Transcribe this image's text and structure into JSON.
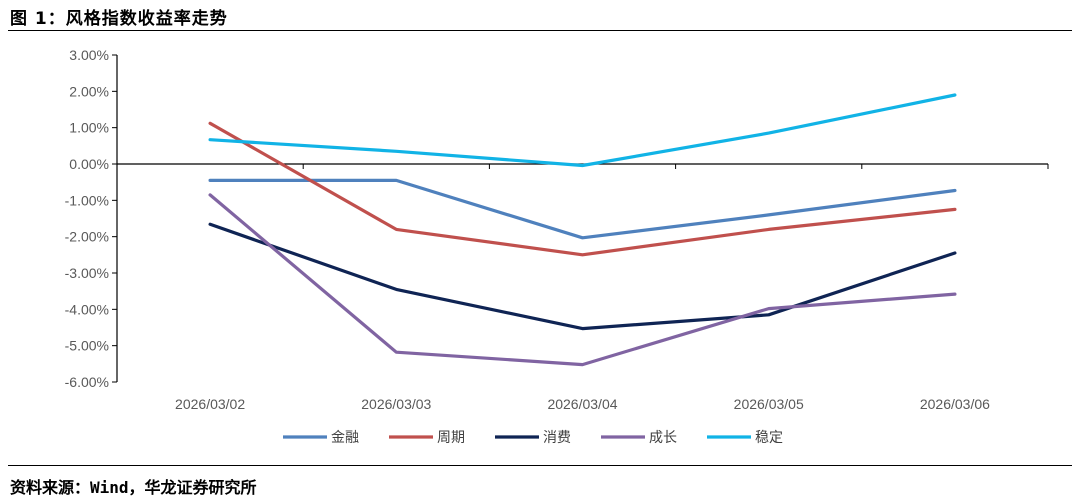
{
  "figure": {
    "title": "图 1：风格指数收益率走势",
    "source": "资料来源：Wind，华龙证券研究所"
  },
  "chart_data": {
    "type": "line",
    "title": "风格指数收益率走势",
    "xlabel": "",
    "ylabel": "",
    "ylim": [
      -6,
      3
    ],
    "ytick_step": 1,
    "yticks": [
      "3.00%",
      "2.00%",
      "1.00%",
      "0.00%",
      "-1.00%",
      "-2.00%",
      "-3.00%",
      "-4.00%",
      "-5.00%",
      "-6.00%"
    ],
    "categories": [
      "2026/03/02",
      "2026/03/03",
      "2026/03/04",
      "2026/03/05",
      "2026/03/06"
    ],
    "legend_position": "bottom",
    "grid": false,
    "series": [
      {
        "name": "金融",
        "color": "#4F81BD",
        "values": [
          -0.45,
          -0.45,
          -2.03,
          -1.4,
          -0.73
        ]
      },
      {
        "name": "周期",
        "color": "#C0504D",
        "values": [
          1.12,
          -1.8,
          -2.5,
          -1.8,
          -1.25
        ]
      },
      {
        "name": "消费",
        "color": "#0F2454",
        "values": [
          -1.66,
          -3.45,
          -4.53,
          -4.15,
          -2.45
        ]
      },
      {
        "name": "成长",
        "color": "#8064A2",
        "values": [
          -0.85,
          -5.18,
          -5.52,
          -3.98,
          -3.58
        ]
      },
      {
        "name": "稳定",
        "color": "#11B3E6",
        "values": [
          0.67,
          0.35,
          -0.04,
          0.85,
          1.9
        ]
      }
    ]
  }
}
